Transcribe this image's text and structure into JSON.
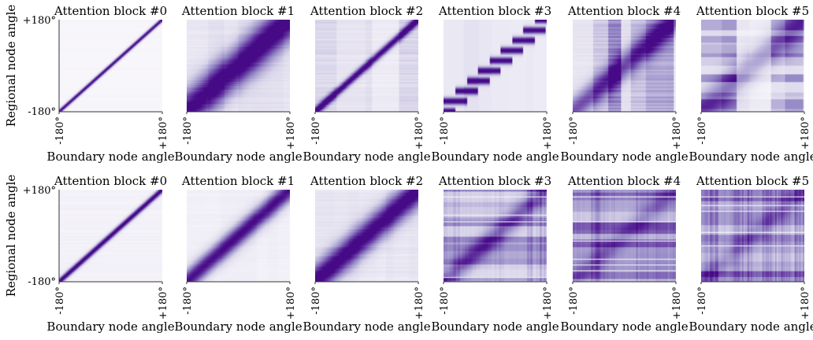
{
  "chart_data": [
    {
      "type": "heatmap",
      "grid_rows": 2,
      "grid_cols": 6,
      "titles": [
        "Attention block #0",
        "Attention block #1",
        "Attention block #2",
        "Attention block #3",
        "Attention block #4",
        "Attention block #5"
      ],
      "xlabel": "Boundary node angle",
      "ylabel": "Regional node angle",
      "x_tick_labels": [
        "-180°",
        "+180°"
      ],
      "y_tick_labels": [
        "+180°",
        "-180°"
      ],
      "x_range_deg": [
        -180,
        180
      ],
      "y_range_deg": [
        -180,
        180
      ],
      "colormap": "Purples",
      "color_low": "#ffffff",
      "color_high": "#4b0e8c",
      "panels": [
        {
          "row": 0,
          "col": 0,
          "pattern": "sharp-diagonal",
          "diag_width": 0.02,
          "diag_strength": 1.0,
          "background": 0.08,
          "noise": 0.15
        },
        {
          "row": 0,
          "col": 1,
          "pattern": "diffuse-diagonal",
          "diag_width": 0.18,
          "diag_strength": 0.9,
          "background": 0.35,
          "noise": 0.35
        },
        {
          "row": 0,
          "col": 2,
          "pattern": "diagonal-bands",
          "diag_width": 0.04,
          "diag_strength": 0.9,
          "background": 0.4,
          "noise": 0.45
        },
        {
          "row": 0,
          "col": 3,
          "pattern": "step-diagonal",
          "diag_width": 0.03,
          "diag_strength": 0.9,
          "background": 0.2,
          "noise": 0.5
        },
        {
          "row": 0,
          "col": 4,
          "pattern": "vertical-bands",
          "diag_width": 0.12,
          "diag_strength": 0.6,
          "background": 0.55,
          "noise": 0.55
        },
        {
          "row": 0,
          "col": 5,
          "pattern": "patchy",
          "diag_width": 0.15,
          "diag_strength": 0.4,
          "background": 0.5,
          "noise": 0.7
        },
        {
          "row": 1,
          "col": 0,
          "pattern": "sharp-diagonal",
          "diag_width": 0.03,
          "diag_strength": 1.0,
          "background": 0.12,
          "noise": 0.2
        },
        {
          "row": 1,
          "col": 1,
          "pattern": "diffuse-diagonal",
          "diag_width": 0.1,
          "diag_strength": 0.9,
          "background": 0.2,
          "noise": 0.3
        },
        {
          "row": 1,
          "col": 2,
          "pattern": "diffuse-diagonal",
          "diag_width": 0.14,
          "diag_strength": 0.9,
          "background": 0.3,
          "noise": 0.35
        },
        {
          "row": 1,
          "col": 3,
          "pattern": "streaky",
          "diag_width": 0.1,
          "diag_strength": 0.4,
          "background": 0.7,
          "noise": 0.75
        },
        {
          "row": 1,
          "col": 4,
          "pattern": "streaky",
          "diag_width": 0.1,
          "diag_strength": 0.2,
          "background": 0.85,
          "noise": 0.7
        },
        {
          "row": 1,
          "col": 5,
          "pattern": "streaky",
          "diag_width": 0.1,
          "diag_strength": 0.2,
          "background": 0.82,
          "noise": 0.7
        }
      ]
    }
  ]
}
